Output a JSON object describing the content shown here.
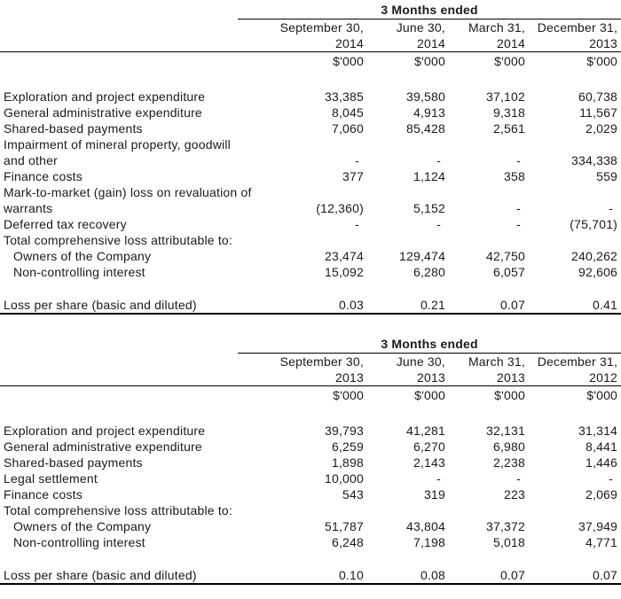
{
  "page": {
    "background": "#ffffff",
    "text_color": "#1a1a1a",
    "rule_color": "#000000"
  },
  "tables": [
    {
      "period_header": "3 Months ended",
      "columns": [
        {
          "month": "September 30,",
          "year": "2014",
          "unit": "$'000"
        },
        {
          "month": "June 30,",
          "year": "2014",
          "unit": "$'000"
        },
        {
          "month": "March 31,",
          "year": "2014",
          "unit": "$'000"
        },
        {
          "month": "December 31,",
          "year": "2013",
          "unit": "$'000"
        }
      ],
      "rows": [
        {
          "label": "Exploration and project expenditure",
          "indent": false,
          "values": [
            "33,385",
            "39,580",
            "37,102",
            "60,738"
          ]
        },
        {
          "label": "General administrative expenditure",
          "indent": false,
          "values": [
            "8,045",
            "4,913",
            "9,318",
            "11,567"
          ]
        },
        {
          "label": "Shared-based payments",
          "indent": false,
          "values": [
            "7,060",
            "85,428",
            "2,561",
            "2,029"
          ]
        },
        {
          "label": "Impairment of mineral property, goodwill\nand other",
          "indent": false,
          "values": [
            "-",
            "-",
            "-",
            "334,338"
          ]
        },
        {
          "label": "Finance costs",
          "indent": false,
          "values": [
            "377",
            "1,124",
            "358",
            "559"
          ]
        },
        {
          "label": "Mark-to-market (gain) loss on revaluation of\nwarrants",
          "indent": false,
          "values": [
            "(12,360)",
            "5,152",
            "-",
            "-"
          ]
        },
        {
          "label": "Deferred tax recovery",
          "indent": false,
          "values": [
            "-",
            "-",
            "-",
            "(75,701)"
          ]
        },
        {
          "label": "Total comprehensive loss attributable to:",
          "indent": false,
          "values": [
            "",
            "",
            "",
            ""
          ]
        },
        {
          "label": "Owners of the Company",
          "indent": true,
          "values": [
            "23,474",
            "129,474",
            "42,750",
            "240,262"
          ]
        },
        {
          "label": "Non-controlling interest",
          "indent": true,
          "values": [
            "15,092",
            "6,280",
            "6,057",
            "92,606"
          ]
        }
      ],
      "summary_row": {
        "label": "Loss per share (basic and diluted)",
        "values": [
          "0.03",
          "0.21",
          "0.07",
          "0.41"
        ]
      }
    },
    {
      "period_header": "3 Months ended",
      "columns": [
        {
          "month": "September 30,",
          "year": "2013",
          "unit": "$'000"
        },
        {
          "month": "June 30,",
          "year": "2013",
          "unit": "$'000"
        },
        {
          "month": "March 31,",
          "year": "2013",
          "unit": "$'000"
        },
        {
          "month": "December 31,",
          "year": "2012",
          "unit": "$'000"
        }
      ],
      "rows": [
        {
          "label": "Exploration and project expenditure",
          "indent": false,
          "values": [
            "39,793",
            "41,281",
            "32,131",
            "31,314"
          ]
        },
        {
          "label": "General administrative expenditure",
          "indent": false,
          "values": [
            "6,259",
            "6,270",
            "6,980",
            "8,441"
          ]
        },
        {
          "label": "Shared-based payments",
          "indent": false,
          "values": [
            "1,898",
            "2,143",
            "2,238",
            "1,446"
          ]
        },
        {
          "label": "Legal settlement",
          "indent": false,
          "values": [
            "10,000",
            "-",
            "-",
            "-"
          ]
        },
        {
          "label": "Finance costs",
          "indent": false,
          "values": [
            "543",
            "319",
            "223",
            "2,069"
          ]
        },
        {
          "label": "Total comprehensive loss attributable to:",
          "indent": false,
          "values": [
            "",
            "",
            "",
            ""
          ]
        },
        {
          "label": "Owners of the Company",
          "indent": true,
          "values": [
            "51,787",
            "43,804",
            "37,372",
            "37,949"
          ]
        },
        {
          "label": "Non-controlling interest",
          "indent": true,
          "values": [
            "6,248",
            "7,198",
            "5,018",
            "4,771"
          ]
        }
      ],
      "summary_row": {
        "label": "Loss per share (basic and diluted)",
        "values": [
          "0.10",
          "0.08",
          "0.07",
          "0.07"
        ]
      }
    }
  ]
}
